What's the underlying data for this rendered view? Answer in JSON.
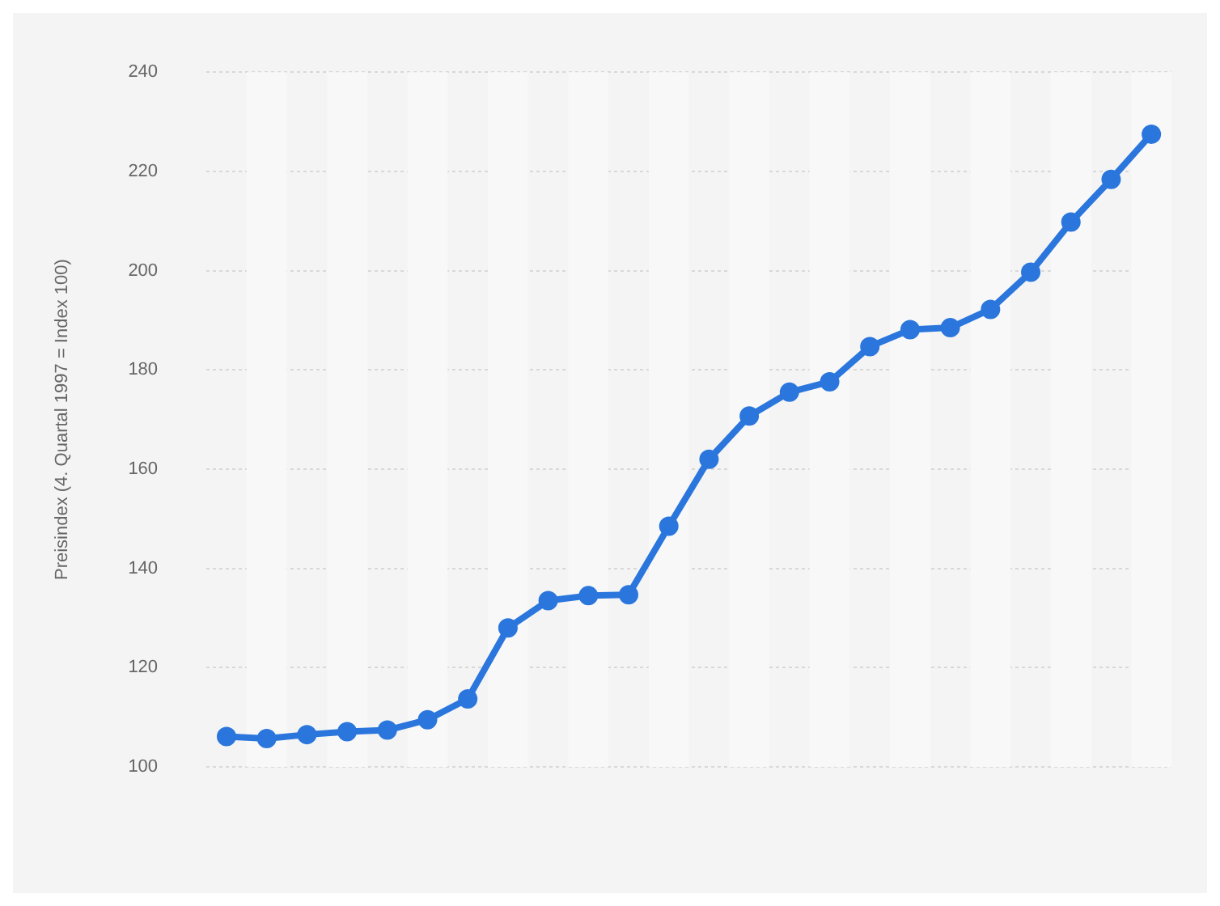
{
  "chart_data": {
    "type": "line",
    "ylabel": "Preisindex (4. Quartal 1997 = Index 100)",
    "categories": [
      null,
      null,
      null,
      null,
      null,
      null,
      null,
      null,
      null,
      null,
      null,
      null,
      null,
      null,
      null,
      null,
      null,
      null,
      null,
      null,
      null,
      null,
      null,
      null
    ],
    "series": [
      {
        "color": "#2a76dd",
        "values": [
          106.1,
          105.7,
          106.5,
          107.1,
          107.4,
          109.5,
          113.7,
          128,
          133.5,
          134.5,
          134.7,
          148.5,
          162,
          170.7,
          175.5,
          177.6,
          184.7,
          188.1,
          188.5,
          192.2,
          199.7,
          209.8,
          218.4,
          227.5
        ]
      }
    ],
    "ylim": [
      100,
      240
    ],
    "yticks": [
      100,
      120,
      140,
      160,
      180,
      200,
      220,
      240
    ],
    "grid": "y",
    "tick_labels": "y",
    "marker": "circle",
    "line_style": "solid",
    "legend": false
  }
}
